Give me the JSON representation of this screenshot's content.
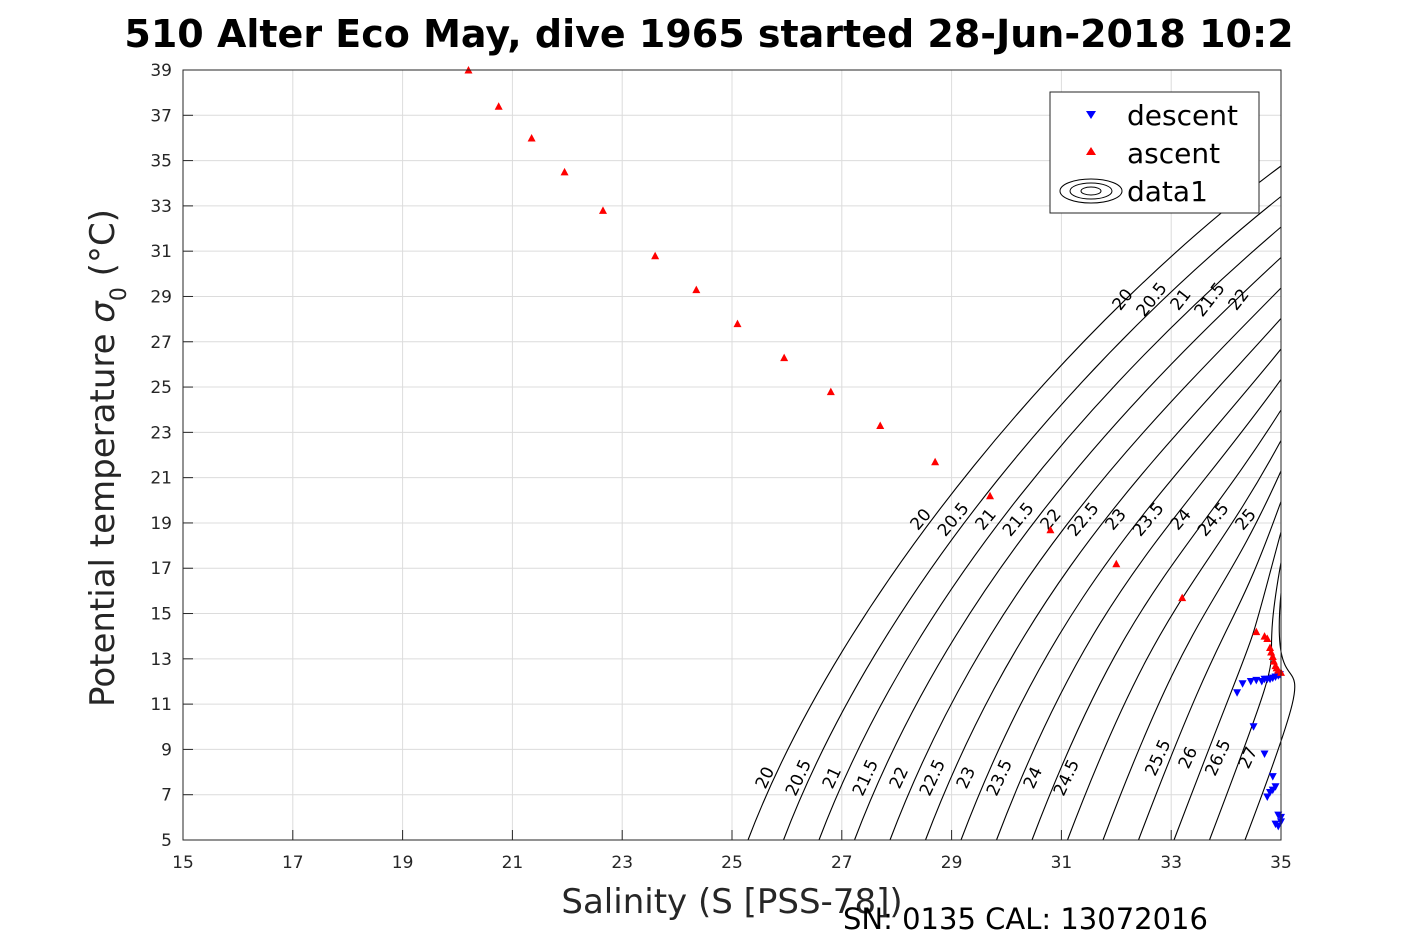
{
  "chart_data": {
    "type": "scatter",
    "title": "510 Alter Eco May, dive 1965 started 28-Jun-2018 10:2",
    "xlabel": "Salinity (S [PSS-78])",
    "ylabel_text": "Potential temperature ",
    "ylabel_symbol": "σ",
    "ylabel_sub": "0",
    "ylabel_unit": " (°C)",
    "footer": "SN: 0135  CAL: 13072016",
    "xlim": [
      15,
      35
    ],
    "ylim": [
      5,
      39
    ],
    "xticks": [
      "15",
      "17",
      "19",
      "21",
      "23",
      "25",
      "27",
      "29",
      "31",
      "33",
      "35"
    ],
    "yticks": [
      "5",
      "7",
      "9",
      "11",
      "13",
      "15",
      "17",
      "19",
      "21",
      "23",
      "25",
      "27",
      "29",
      "31",
      "33",
      "35",
      "37",
      "39"
    ],
    "grid": true,
    "legend_position": "top-right",
    "legend": [
      {
        "label": "descent",
        "marker": "triangle-down",
        "color": "#0000ff"
      },
      {
        "label": "ascent",
        "marker": "triangle-up",
        "color": "#ff0000"
      },
      {
        "label": "data1",
        "marker": "contour",
        "color": "#000000"
      }
    ],
    "series": [
      {
        "name": "descent",
        "color": "#0000ff",
        "marker": "triangle-down",
        "x": [
          34.2,
          34.3,
          34.45,
          34.55,
          34.65,
          34.7,
          34.75,
          34.8,
          34.85,
          34.9,
          34.95,
          34.98,
          34.5,
          34.7,
          34.85,
          34.75,
          34.8,
          34.85,
          34.9,
          34.95,
          34.9,
          34.95,
          35.0,
          35.0
        ],
        "y": [
          11.5,
          11.9,
          12.0,
          12.05,
          12.0,
          12.1,
          12.1,
          12.1,
          12.15,
          12.2,
          12.25,
          12.3,
          10.0,
          8.8,
          7.8,
          6.9,
          7.1,
          7.2,
          7.35,
          6.1,
          5.7,
          5.6,
          5.8,
          6.0
        ]
      },
      {
        "name": "ascent",
        "color": "#ff0000",
        "marker": "triangle-up",
        "x": [
          20.2,
          20.75,
          21.35,
          21.95,
          22.65,
          23.6,
          24.35,
          25.1,
          25.95,
          26.8,
          27.7,
          28.7,
          29.7,
          30.8,
          32.0,
          33.2,
          34.55,
          34.7,
          34.75,
          34.8,
          34.82,
          34.85,
          34.87,
          34.9,
          34.92,
          34.95,
          35.0
        ],
        "y": [
          39.0,
          37.4,
          36.0,
          34.5,
          32.8,
          30.8,
          29.3,
          27.8,
          26.3,
          24.8,
          23.3,
          21.7,
          20.2,
          18.7,
          17.2,
          15.7,
          14.2,
          14.0,
          13.9,
          13.5,
          13.3,
          13.1,
          12.9,
          12.7,
          12.6,
          12.5,
          12.4
        ]
      }
    ],
    "contour_levels": [
      "20",
      "20.5",
      "21",
      "21.5",
      "22",
      "22.5",
      "23",
      "23.5",
      "24",
      "24.5",
      "25",
      "25.5",
      "26",
      "26.5",
      "27"
    ],
    "contour_labels_upper": [
      "20",
      "20.5",
      "21",
      "21.5",
      "22"
    ],
    "contour_labels_middle": [
      "20",
      "20.5",
      "21",
      "21.5",
      "22",
      "22.5",
      "23",
      "23.5",
      "24",
      "24.5",
      "25"
    ],
    "contour_labels_lower": [
      "20",
      "20.5",
      "21",
      "21.5",
      "22",
      "22.5",
      "23",
      "23.5",
      "24",
      "24.5",
      "25.5",
      "26",
      "26.5",
      "27"
    ]
  }
}
